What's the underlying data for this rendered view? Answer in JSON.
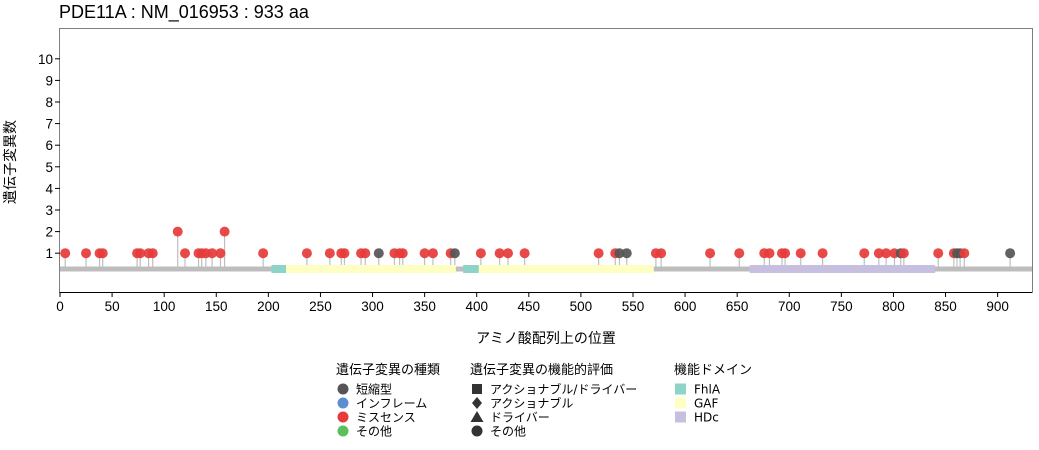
{
  "chart_data": {
    "type": "lollipop",
    "title": "PDE11A : NM_016953 : 933 aa",
    "xlabel": "アミノ酸配列上の位置",
    "ylabel": "遺伝子変異数",
    "xlim": [
      0,
      933
    ],
    "ylim": [
      0,
      11
    ],
    "x_ticks": [
      0,
      50,
      100,
      150,
      200,
      250,
      300,
      350,
      400,
      450,
      500,
      550,
      600,
      650,
      700,
      750,
      800,
      850,
      900
    ],
    "y_ticks": [
      1,
      2,
      3,
      4,
      5,
      6,
      7,
      8,
      9,
      10
    ],
    "protein_length": 933,
    "domains": [
      {
        "name": "FhlA",
        "start": 203,
        "end": 217
      },
      {
        "name": "GAF",
        "start": 217,
        "end": 380
      },
      {
        "name": "FhlA",
        "start": 387,
        "end": 402
      },
      {
        "name": "GAF",
        "start": 402,
        "end": 570
      },
      {
        "name": "HDc",
        "start": 662,
        "end": 840
      }
    ],
    "mutations": [
      {
        "pos": 5,
        "count": 1,
        "type": "missense"
      },
      {
        "pos": 25,
        "count": 1,
        "type": "missense"
      },
      {
        "pos": 38,
        "count": 1,
        "type": "missense"
      },
      {
        "pos": 41,
        "count": 1,
        "type": "missense"
      },
      {
        "pos": 74,
        "count": 1,
        "type": "missense"
      },
      {
        "pos": 77,
        "count": 1,
        "type": "missense"
      },
      {
        "pos": 85,
        "count": 1,
        "type": "missense"
      },
      {
        "pos": 89,
        "count": 1,
        "type": "missense"
      },
      {
        "pos": 113,
        "count": 2,
        "type": "missense"
      },
      {
        "pos": 120,
        "count": 1,
        "type": "missense"
      },
      {
        "pos": 133,
        "count": 1,
        "type": "missense"
      },
      {
        "pos": 136,
        "count": 1,
        "type": "missense"
      },
      {
        "pos": 140,
        "count": 1,
        "type": "missense"
      },
      {
        "pos": 146,
        "count": 1,
        "type": "missense"
      },
      {
        "pos": 154,
        "count": 1,
        "type": "missense"
      },
      {
        "pos": 158,
        "count": 2,
        "type": "missense"
      },
      {
        "pos": 195,
        "count": 1,
        "type": "missense"
      },
      {
        "pos": 237,
        "count": 1,
        "type": "missense"
      },
      {
        "pos": 259,
        "count": 1,
        "type": "missense"
      },
      {
        "pos": 270,
        "count": 1,
        "type": "missense"
      },
      {
        "pos": 273,
        "count": 1,
        "type": "missense"
      },
      {
        "pos": 289,
        "count": 1,
        "type": "missense"
      },
      {
        "pos": 293,
        "count": 1,
        "type": "missense"
      },
      {
        "pos": 306,
        "count": 1,
        "type": "truncating"
      },
      {
        "pos": 321,
        "count": 1,
        "type": "missense"
      },
      {
        "pos": 326,
        "count": 1,
        "type": "missense"
      },
      {
        "pos": 329,
        "count": 1,
        "type": "missense"
      },
      {
        "pos": 350,
        "count": 1,
        "type": "missense"
      },
      {
        "pos": 358,
        "count": 1,
        "type": "missense"
      },
      {
        "pos": 375,
        "count": 1,
        "type": "missense"
      },
      {
        "pos": 379,
        "count": 1,
        "type": "truncating"
      },
      {
        "pos": 404,
        "count": 1,
        "type": "missense"
      },
      {
        "pos": 422,
        "count": 1,
        "type": "missense"
      },
      {
        "pos": 430,
        "count": 1,
        "type": "missense"
      },
      {
        "pos": 446,
        "count": 1,
        "type": "missense"
      },
      {
        "pos": 517,
        "count": 1,
        "type": "missense"
      },
      {
        "pos": 533,
        "count": 1,
        "type": "missense"
      },
      {
        "pos": 537,
        "count": 1,
        "type": "truncating"
      },
      {
        "pos": 544,
        "count": 1,
        "type": "truncating"
      },
      {
        "pos": 572,
        "count": 1,
        "type": "missense"
      },
      {
        "pos": 577,
        "count": 1,
        "type": "missense"
      },
      {
        "pos": 624,
        "count": 1,
        "type": "missense"
      },
      {
        "pos": 652,
        "count": 1,
        "type": "missense"
      },
      {
        "pos": 676,
        "count": 1,
        "type": "missense"
      },
      {
        "pos": 681,
        "count": 1,
        "type": "missense"
      },
      {
        "pos": 693,
        "count": 1,
        "type": "missense"
      },
      {
        "pos": 696,
        "count": 1,
        "type": "missense"
      },
      {
        "pos": 711,
        "count": 1,
        "type": "missense"
      },
      {
        "pos": 732,
        "count": 1,
        "type": "missense"
      },
      {
        "pos": 772,
        "count": 1,
        "type": "missense"
      },
      {
        "pos": 786,
        "count": 1,
        "type": "missense"
      },
      {
        "pos": 793,
        "count": 1,
        "type": "missense"
      },
      {
        "pos": 801,
        "count": 1,
        "type": "missense"
      },
      {
        "pos": 807,
        "count": 1,
        "type": "truncating"
      },
      {
        "pos": 810,
        "count": 1,
        "type": "missense"
      },
      {
        "pos": 843,
        "count": 1,
        "type": "missense"
      },
      {
        "pos": 858,
        "count": 1,
        "type": "missense"
      },
      {
        "pos": 861,
        "count": 1,
        "type": "truncating"
      },
      {
        "pos": 864,
        "count": 1,
        "type": "truncating"
      },
      {
        "pos": 868,
        "count": 1,
        "type": "missense"
      },
      {
        "pos": 912,
        "count": 1,
        "type": "truncating"
      }
    ],
    "legend": [
      {
        "title": "遺伝子変異の種類",
        "items": [
          {
            "label": "短縮型",
            "color": "#555555",
            "shape": "circle"
          },
          {
            "label": "インフレーム",
            "color": "#5b8fd0",
            "shape": "circle"
          },
          {
            "label": "ミスセンス",
            "color": "#e63b3b",
            "shape": "circle"
          },
          {
            "label": "その他",
            "color": "#5bbf5b",
            "shape": "circle"
          }
        ]
      },
      {
        "title": "遺伝子変異の機能的評価",
        "items": [
          {
            "label": "アクショナブル/ドライバー",
            "color": "#333333",
            "shape": "square"
          },
          {
            "label": "アクショナブル",
            "color": "#333333",
            "shape": "diamond"
          },
          {
            "label": "ドライバー",
            "color": "#333333",
            "shape": "triangle"
          },
          {
            "label": "その他",
            "color": "#333333",
            "shape": "circle"
          }
        ]
      },
      {
        "title": "機能ドメイン",
        "items": [
          {
            "label": "FhlA",
            "color": "#8dd3c7",
            "shape": "rect"
          },
          {
            "label": "GAF",
            "color": "#ffffc4",
            "shape": "rect"
          },
          {
            "label": "HDc",
            "color": "#c6bfe0",
            "shape": "rect"
          }
        ]
      }
    ],
    "colors": {
      "truncating": "#555555",
      "inframe": "#5b8fd0",
      "missense": "#e63b3b",
      "other": "#5bbf5b",
      "backbone": "#bdbdbd",
      "stem": "#bfbfbf"
    }
  }
}
